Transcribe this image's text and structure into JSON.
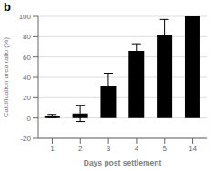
{
  "chart_data": {
    "type": "bar",
    "categories": [
      "1",
      "2",
      "3",
      "4",
      "5",
      "14"
    ],
    "values": [
      2,
      4.5,
      31,
      66,
      82,
      100
    ],
    "errors": [
      1.5,
      8,
      13,
      7,
      15,
      0
    ],
    "color": "#000000",
    "xlabel": "Days post settlement",
    "ylabel": "Calcification area ratio (%)",
    "ylim": [
      -20,
      100
    ],
    "yticks": [
      -20,
      0,
      20,
      40,
      60,
      80,
      100
    ],
    "annotations": [
      "b"
    ],
    "grid": true
  }
}
